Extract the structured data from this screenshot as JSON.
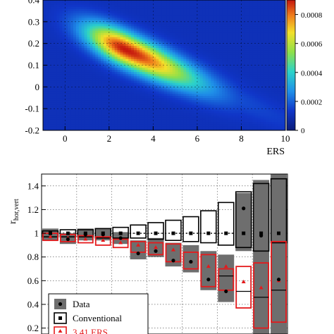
{
  "chart_data": [
    {
      "type": "heatmap",
      "xlabel": "ERS",
      "ylabel": "",
      "xlim": [
        -1,
        10
      ],
      "ylim": [
        -0.2,
        0.4
      ],
      "x_ticks": [
        "0",
        "2",
        "4",
        "6",
        "8",
        "10"
      ],
      "y_ticks": [
        "-0.2",
        "-0.1",
        "0",
        "0.1",
        "0.2",
        "0.3",
        "0.4"
      ],
      "colorbar": {
        "range": [
          0,
          0.0009
        ],
        "ticks": [
          "0",
          "0.0002",
          "0.0004",
          "0.0006",
          "0.0008"
        ]
      },
      "peak": {
        "x": 2.7,
        "y": 0.175,
        "value": 0.00085
      },
      "ridge": [
        {
          "x": 0.5,
          "y": 0.3
        },
        {
          "x": 2.7,
          "y": 0.175
        },
        {
          "x": 5.5,
          "y": 0.04
        },
        {
          "x": 9.0,
          "y": -0.08
        }
      ],
      "grid": true
    },
    {
      "type": "bar",
      "ylabel": "r",
      "ylabel_sub": "hor,vert",
      "ylim": [
        0.15,
        1.5
      ],
      "y_ticks": [
        "0.2",
        "0.4",
        "0.6",
        "0.8",
        "1",
        "1.2",
        "1.4"
      ],
      "grid": true,
      "series": [
        {
          "name": "Data",
          "values": [
            1.0,
            0.95,
            0.99,
            0.99,
            0.96,
            0.83,
            0.85,
            0.77,
            0.76,
            0.61,
            0.51,
            1.21,
            0.98,
            0.61
          ],
          "band_low": [
            0.94,
            0.91,
            0.94,
            0.94,
            0.91,
            0.78,
            0.8,
            0.72,
            0.67,
            0.52,
            0.42,
            0.85,
            0.15,
            0.15
          ],
          "band_high": [
            1.04,
            1.0,
            1.04,
            1.04,
            1.01,
            0.94,
            0.96,
            0.92,
            0.9,
            0.85,
            0.82,
            1.34,
            1.45,
            1.5
          ]
        },
        {
          "name": "Conventional",
          "values": [
            1.0,
            1.0,
            1.0,
            1.0,
            1.0,
            1.0,
            1.0,
            1.0,
            1.0,
            1.0,
            1.0,
            1.0,
            1.0,
            1.0
          ],
          "band_low": [
            0.97,
            0.97,
            0.97,
            0.96,
            0.96,
            0.96,
            0.95,
            0.94,
            0.93,
            0.92,
            0.9,
            0.88,
            0.85,
            0.92
          ],
          "band_high": [
            1.02,
            1.03,
            1.03,
            1.04,
            1.05,
            1.07,
            1.09,
            1.11,
            1.14,
            1.19,
            1.26,
            1.35,
            1.42,
            1.46
          ]
        },
        {
          "name": "3.41 ERS",
          "values": [
            0.97,
            0.96,
            0.95,
            0.94,
            0.92,
            0.9,
            0.88,
            0.86,
            0.76,
            0.72,
            0.72,
            0.59,
            0.54,
            0.6
          ],
          "band_low": [
            0.94,
            0.93,
            0.92,
            0.9,
            0.88,
            0.84,
            0.82,
            0.76,
            0.7,
            0.55,
            0.52,
            0.37,
            0.2,
            0.25
          ],
          "band_high": [
            1.0,
            0.99,
            0.98,
            0.97,
            0.95,
            0.93,
            0.92,
            0.91,
            0.84,
            0.82,
            0.7,
            0.72,
            0.75,
            0.93
          ]
        }
      ]
    }
  ],
  "legend": {
    "data_label": "Data",
    "conventional_label": "Conventional",
    "ers_label": "3.41 ERS"
  },
  "colors": {
    "data_band": "#6e6e6e",
    "ers": "#e41a1c",
    "conventional": "#000000"
  }
}
